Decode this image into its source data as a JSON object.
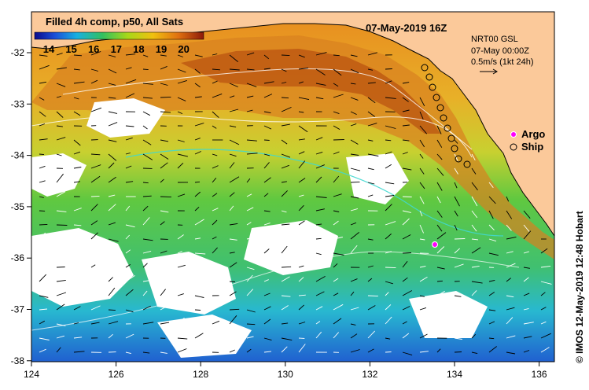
{
  "map": {
    "panel_title": "Filled 4h comp, p50, All Sats",
    "date_title": "07-May-2019 16Z",
    "info_line1": "NRT00 GSL",
    "info_line2": "07-May 00:00Z",
    "info_line3": "0.5m/s (1kt 24h)",
    "side_credit": "© IMOS 12-May-2019 12:48 Hobart",
    "colorbar_ticks": [
      "14",
      "15",
      "16",
      "17",
      "18",
      "19",
      "20"
    ],
    "legend": {
      "argo": "Argo",
      "ship": "Ship"
    },
    "lon_ticks": [
      "124",
      "126",
      "128",
      "130",
      "132",
      "134",
      "136"
    ],
    "lat_ticks": [
      "-32",
      "-33",
      "-34",
      "-35",
      "-36",
      "-37",
      "-38"
    ],
    "colors": {
      "land": "#fbc99a",
      "argo": "#ff00ff",
      "ship": "#000000"
    },
    "icons": [
      "argo-marker-icon",
      "ship-marker-icon",
      "velocity-arrow-icon"
    ]
  }
}
